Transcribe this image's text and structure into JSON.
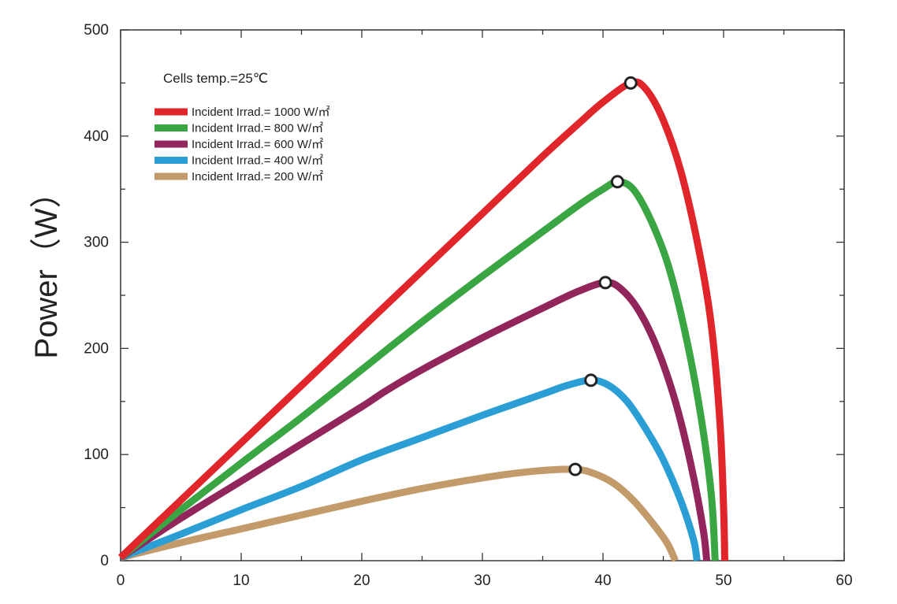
{
  "chart_data": {
    "type": "line",
    "title": "",
    "xlabel": "",
    "ylabel": "Power（W）",
    "annotation": "Cells temp.=25℃",
    "xlim": [
      0,
      60
    ],
    "ylim": [
      0,
      500
    ],
    "x_ticks": [
      "0",
      "10",
      "20",
      "30",
      "40",
      "50",
      "60"
    ],
    "y_ticks": [
      "0",
      "100",
      "200",
      "300",
      "400",
      "500"
    ],
    "grid": false,
    "legend_position": "top-left",
    "series": [
      {
        "name": "Incident Irrad.= 1000 W/㎡",
        "color": "#e0262a",
        "mpp": [
          42.3,
          450
        ],
        "points": [
          [
            0,
            3
          ],
          [
            5,
            57
          ],
          [
            10,
            111
          ],
          [
            15,
            165
          ],
          [
            20,
            219
          ],
          [
            25,
            273
          ],
          [
            30,
            327
          ],
          [
            35,
            381
          ],
          [
            38,
            412
          ],
          [
            40,
            432
          ],
          [
            42.3,
            450
          ],
          [
            43.5,
            445
          ],
          [
            45,
            415
          ],
          [
            46.5,
            365
          ],
          [
            48,
            290
          ],
          [
            49,
            220
          ],
          [
            49.7,
            130
          ],
          [
            50,
            50
          ],
          [
            50.1,
            0
          ]
        ]
      },
      {
        "name": "Incident Irrad.= 800 W/㎡",
        "color": "#3aa543",
        "mpp": [
          41.2,
          357
        ],
        "points": [
          [
            0,
            3
          ],
          [
            5,
            48
          ],
          [
            10,
            92
          ],
          [
            15,
            135
          ],
          [
            20,
            180
          ],
          [
            25,
            225
          ],
          [
            30,
            268
          ],
          [
            35,
            310
          ],
          [
            38,
            335
          ],
          [
            40,
            350
          ],
          [
            41.2,
            357
          ],
          [
            42.5,
            350
          ],
          [
            44,
            320
          ],
          [
            45.5,
            275
          ],
          [
            47,
            205
          ],
          [
            48.2,
            130
          ],
          [
            49,
            60
          ],
          [
            49.3,
            0
          ]
        ]
      },
      {
        "name": "Incident Irrad.= 600 W/㎡",
        "color": "#92265c",
        "mpp": [
          40.2,
          262
        ],
        "points": [
          [
            0,
            3
          ],
          [
            5,
            40
          ],
          [
            10,
            75
          ],
          [
            15,
            110
          ],
          [
            20,
            145
          ],
          [
            22,
            160
          ],
          [
            25,
            180
          ],
          [
            30,
            210
          ],
          [
            35,
            238
          ],
          [
            38,
            254
          ],
          [
            40.2,
            262
          ],
          [
            41.5,
            256
          ],
          [
            43,
            235
          ],
          [
            44.5,
            200
          ],
          [
            46,
            150
          ],
          [
            47.3,
            90
          ],
          [
            48.3,
            30
          ],
          [
            48.6,
            0
          ]
        ]
      },
      {
        "name": "Incident Irrad.= 400 W/㎡",
        "color": "#2b9fd5",
        "mpp": [
          39,
          170
        ],
        "points": [
          [
            0,
            3
          ],
          [
            5,
            25
          ],
          [
            10,
            48
          ],
          [
            15,
            70
          ],
          [
            20,
            95
          ],
          [
            25,
            116
          ],
          [
            30,
            137
          ],
          [
            35,
            157
          ],
          [
            37,
            165
          ],
          [
            39,
            170
          ],
          [
            40.5,
            165
          ],
          [
            42,
            150
          ],
          [
            43.5,
            125
          ],
          [
            45,
            95
          ],
          [
            46.5,
            55
          ],
          [
            47.5,
            20
          ],
          [
            47.8,
            0
          ]
        ]
      },
      {
        "name": "Incident Irrad.= 200 W/㎡",
        "color": "#c39b6b",
        "mpp": [
          37.7,
          86
        ],
        "points": [
          [
            0,
            3
          ],
          [
            5,
            17
          ],
          [
            10,
            30
          ],
          [
            15,
            43
          ],
          [
            20,
            56
          ],
          [
            25,
            68
          ],
          [
            30,
            78
          ],
          [
            34,
            84
          ],
          [
            37.7,
            86
          ],
          [
            39.5,
            81
          ],
          [
            41,
            72
          ],
          [
            42.5,
            57
          ],
          [
            44,
            37
          ],
          [
            45.3,
            17
          ],
          [
            46,
            0
          ]
        ]
      }
    ]
  }
}
